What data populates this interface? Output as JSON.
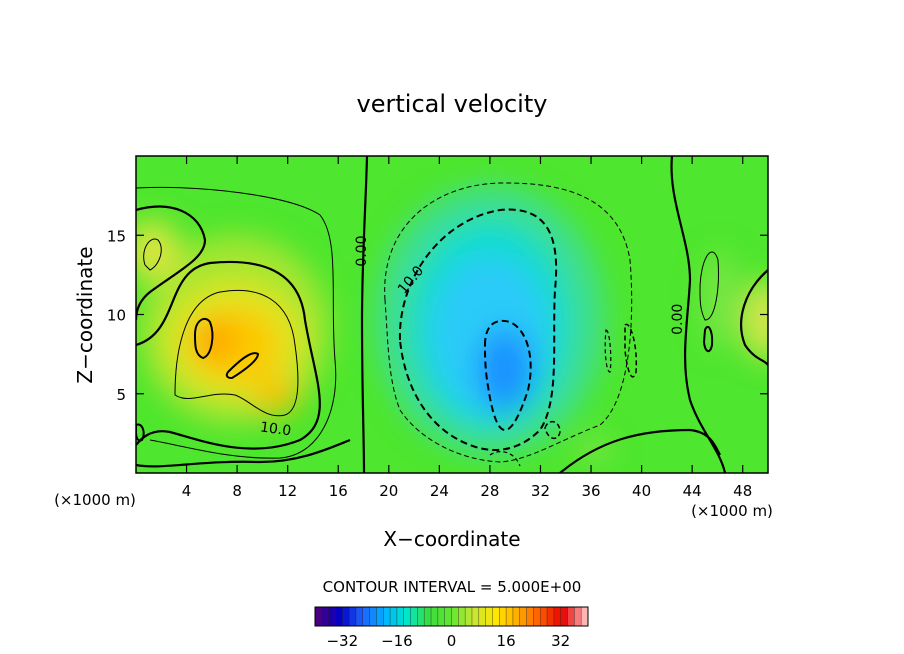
{
  "chart_data": {
    "type": "heatmap",
    "title": "vertical velocity",
    "xlabel": "X−coordinate",
    "ylabel": "Z−coordinate",
    "x_unit": "(×1000 m)",
    "y_unit": "(×1000 m)",
    "xlim": [
      0,
      50
    ],
    "ylim": [
      0,
      20
    ],
    "x_ticks": [
      4,
      8,
      12,
      16,
      20,
      24,
      28,
      32,
      36,
      40,
      44,
      48
    ],
    "y_ticks": [
      5,
      10,
      15
    ],
    "x_tick_labels": [
      "4",
      "8",
      "12",
      "16",
      "20",
      "24",
      "28",
      "32",
      "36",
      "40",
      "44",
      "48"
    ],
    "y_tick_labels": [
      "5",
      "10",
      "15"
    ],
    "contour_interval_text": "CONTOUR INTERVAL = 5.000E+00",
    "contour_labels": [
      {
        "text": "0.00",
        "x": 18.2,
        "y": 14.0,
        "rotate": -90
      },
      {
        "text": "10.0",
        "x": 22.0,
        "y": 12.0,
        "rotate": -50
      },
      {
        "text": "10.0",
        "x": 11.0,
        "y": 2.5,
        "rotate": 8
      },
      {
        "text": "0.00",
        "x": 43.2,
        "y": 9.7,
        "rotate": -90
      }
    ],
    "features": [
      {
        "name": "updraft-core-left",
        "sign": "positive",
        "x": 9.0,
        "z": 7.5,
        "peak": 20
      },
      {
        "name": "updraft-top-left",
        "sign": "positive",
        "x": 1.5,
        "z": 14.0,
        "peak": 10
      },
      {
        "name": "downdraft-core",
        "sign": "negative",
        "x": 29.0,
        "z": 7.0,
        "peak": -25
      },
      {
        "name": "updraft-right-edge",
        "sign": "positive",
        "x": 49.5,
        "z": 10.0,
        "peak": 10
      }
    ],
    "colorbar": {
      "min": -40,
      "max": 40,
      "ticks": [
        -32,
        -16,
        0,
        16,
        32
      ],
      "tick_labels": [
        "−32",
        "−16",
        "0",
        "16",
        "32"
      ],
      "colors": [
        "#4b0082",
        "#0000c8",
        "#1e64ff",
        "#00b4ff",
        "#00e6c8",
        "#3cdc3c",
        "#64e632",
        "#c8e632",
        "#ffe600",
        "#ffaa00",
        "#ff5a00",
        "#e60000",
        "#ffb4b4"
      ]
    }
  }
}
